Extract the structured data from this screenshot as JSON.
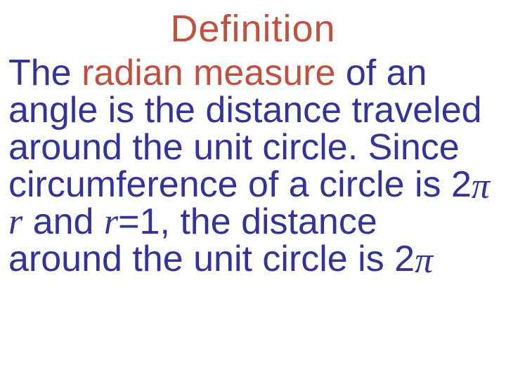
{
  "title": {
    "text": "Definition",
    "color": "#c0503f",
    "fontsize": 54
  },
  "body": {
    "fontsize": 52,
    "color_main": "#333399",
    "color_accent": "#c0503f",
    "segments": {
      "s1": "The ",
      "s2": "radian measure",
      "s3": " of an angle is the distance traveled around the unit circle. Since circumference of a circle is 2",
      "pi1": "π",
      "s4": " r",
      "s5": " and ",
      "s6": "r",
      "s7": "=1, the distance around the unit circle is 2",
      "pi2": "π"
    }
  },
  "style": {
    "background": "#ffffff"
  }
}
